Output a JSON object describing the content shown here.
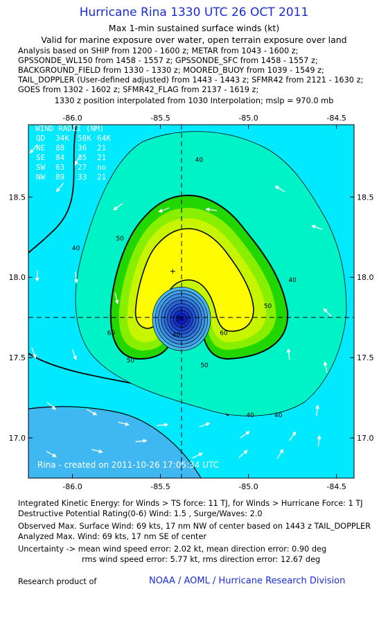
{
  "header": {
    "title": "Hurricane Rina 1330 UTC 26 OCT 2011",
    "subtitle": "Max 1-min sustained surface winds (kt)",
    "valid": "Valid for marine exposure over water, open terrain exposure over land",
    "analysis_lines": [
      "Analysis based on SHIP from 1200 - 1600 z; METAR from 1043 - 1600 z;",
      "GPSSONDE_WL150 from 1458 - 1557 z; GPSSONDE_SFC from 1458 - 1557 z;",
      "BACKGROUND_FIELD from 1330 - 1330 z; MOORED_BUOY from 1039 - 1549 z;",
      "TAIL_DOPPLER (User-defined adjusted) from 1443 - 1443 z; SFMR42 from 2121 - 1630 z;",
      "GOES from 1302 - 1602 z; SFMR42_FLAG from 2137 - 1619 z;"
    ],
    "position_note": "1330 z position interpolated from 1030 Interpolation; mslp = 970.0 mb"
  },
  "wind_radii": {
    "title": "WIND RADII (NM)",
    "header": [
      "QD",
      "34K",
      "50K",
      "64K"
    ],
    "rows": [
      [
        "NE",
        "88",
        "36",
        "21"
      ],
      [
        "SE",
        "84",
        "35",
        "21"
      ],
      [
        "SW",
        "63",
        "27",
        "no"
      ],
      [
        "NW",
        "89",
        "33",
        "21"
      ]
    ]
  },
  "watermark": "Rina - created on 2011-10-26 17:05:34 UTC",
  "footer": {
    "ike": "Integrated Kinetic Energy:  for Winds > TS force: 11 TJ,  for Winds > Hurricane Force: 1 TJ",
    "dpr": "Destructive Potential Rating(0-6)   Wind: 1.5 , Surge/Waves: 2.0",
    "observed": "Observed Max. Surface Wind: 69 kts, 17 nm NW of center based on 1443 z TAIL_DOPPLER",
    "analyzed": "Analyzed Max. Wind: 69 kts, 17 nm SE of center",
    "uncertainty_1": "Uncertainty -> mean wind speed error: 2.02 kt,   mean direction error: 0.90 deg",
    "uncertainty_2": "rms wind speed error: 5.77 kt,   rms direction error: 12.67 deg",
    "research": "Research product of",
    "org": "NOAA / AOML / Hurricane Research Division"
  },
  "colors": {
    "title": "#1a2bd6",
    "bg_low": "#3fb8f2",
    "lvl30": "#00e9ff",
    "lvl40": "#00f2c7",
    "lvl50": "#22d600",
    "lvl55": "#88ef00",
    "lvl60": "#c7f500",
    "lvl65": "#fffb00",
    "eye_light": "#49b6ef",
    "eye_dark": "#0b1cc6"
  },
  "chart_data": {
    "type": "contour",
    "xlim": [
      -86.25,
      -84.4
    ],
    "ylim": [
      16.75,
      18.95
    ],
    "x_ticks": [
      -86.0,
      -85.5,
      -85.0,
      -84.5
    ],
    "x_tick_labels": [
      "-86.0",
      "-85.5",
      "-85.0",
      "-84.5"
    ],
    "y_ticks": [
      17.0,
      17.5,
      18.0,
      18.5
    ],
    "y_tick_labels": [
      "17.0",
      "17.5",
      "18.0",
      "18.5"
    ],
    "center": {
      "lon": -85.38,
      "lat": 17.75
    },
    "max_wind_marker": {
      "lon": -85.43,
      "lat": 18.04
    },
    "contour_levels": [
      20,
      30,
      40,
      50,
      55,
      60,
      65
    ],
    "contour_labels": [
      {
        "text": "40",
        "lon": -85.28,
        "lat": 18.72
      },
      {
        "text": "40",
        "lon": -85.98,
        "lat": 18.17
      },
      {
        "text": "40",
        "lon": -84.75,
        "lat": 17.97
      },
      {
        "text": "40",
        "lon": -85.41,
        "lat": 17.63
      },
      {
        "text": "40",
        "lon": -84.99,
        "lat": 17.13
      },
      {
        "text": "40",
        "lon": -84.83,
        "lat": 17.13
      },
      {
        "text": "50",
        "lon": -85.73,
        "lat": 18.23
      },
      {
        "text": "50",
        "lon": -84.89,
        "lat": 17.81
      },
      {
        "text": "50",
        "lon": -85.67,
        "lat": 17.47
      },
      {
        "text": "50",
        "lon": -85.25,
        "lat": 17.44
      },
      {
        "text": "60",
        "lon": -85.78,
        "lat": 17.64
      },
      {
        "text": "60",
        "lon": -85.14,
        "lat": 17.64
      },
      {
        "text": "50",
        "lon": -85.39,
        "lat": 17.73
      }
    ],
    "wind_vectors": [
      {
        "lon": -86.22,
        "lat": 18.8,
        "u": -0.5,
        "v": -0.6
      },
      {
        "lon": -85.97,
        "lat": 18.73,
        "u": -0.4,
        "v": -0.7
      },
      {
        "lon": -86.07,
        "lat": 18.56,
        "u": -0.5,
        "v": -0.6
      },
      {
        "lon": -85.74,
        "lat": 18.44,
        "u": -0.7,
        "v": -0.5
      },
      {
        "lon": -85.48,
        "lat": 18.42,
        "u": -0.8,
        "v": -0.3
      },
      {
        "lon": -85.21,
        "lat": 18.42,
        "u": -0.8,
        "v": 0.1
      },
      {
        "lon": -84.82,
        "lat": 18.55,
        "u": -0.7,
        "v": 0.4
      },
      {
        "lon": -84.61,
        "lat": 18.31,
        "u": -0.8,
        "v": 0.3
      },
      {
        "lon": -84.55,
        "lat": 17.78,
        "u": -0.6,
        "v": 0.6
      },
      {
        "lon": -86.2,
        "lat": 18.01,
        "u": 0.0,
        "v": -0.9
      },
      {
        "lon": -85.98,
        "lat": 18.0,
        "u": 0.1,
        "v": -0.9
      },
      {
        "lon": -85.75,
        "lat": 17.87,
        "u": 0.2,
        "v": -0.9
      },
      {
        "lon": -86.22,
        "lat": 17.53,
        "u": 0.3,
        "v": -0.8
      },
      {
        "lon": -85.99,
        "lat": 17.52,
        "u": 0.3,
        "v": -0.8
      },
      {
        "lon": -84.77,
        "lat": 17.52,
        "u": -0.1,
        "v": 0.9
      },
      {
        "lon": -84.56,
        "lat": 17.44,
        "u": -0.2,
        "v": 0.9
      },
      {
        "lon": -86.12,
        "lat": 17.2,
        "u": 0.6,
        "v": -0.5
      },
      {
        "lon": -85.89,
        "lat": 17.16,
        "u": 0.7,
        "v": -0.4
      },
      {
        "lon": -85.71,
        "lat": 17.09,
        "u": 0.8,
        "v": -0.2
      },
      {
        "lon": -85.49,
        "lat": 17.08,
        "u": 0.9,
        "v": 0.1
      },
      {
        "lon": -85.25,
        "lat": 17.08,
        "u": 0.8,
        "v": 0.3
      },
      {
        "lon": -85.02,
        "lat": 17.02,
        "u": 0.7,
        "v": 0.5
      },
      {
        "lon": -84.75,
        "lat": 17.01,
        "u": 0.5,
        "v": 0.7
      },
      {
        "lon": -84.61,
        "lat": 17.17,
        "u": 0.1,
        "v": 0.9
      },
      {
        "lon": -86.12,
        "lat": 16.9,
        "u": 0.7,
        "v": -0.4
      },
      {
        "lon": -85.86,
        "lat": 16.92,
        "u": 0.8,
        "v": -0.2
      },
      {
        "lon": -85.61,
        "lat": 16.98,
        "u": 0.9,
        "v": 0.1
      },
      {
        "lon": -85.29,
        "lat": 16.89,
        "u": 0.8,
        "v": 0.4
      },
      {
        "lon": -85.03,
        "lat": 16.9,
        "u": 0.7,
        "v": 0.6
      },
      {
        "lon": -84.82,
        "lat": 16.9,
        "u": 0.5,
        "v": 0.8
      },
      {
        "lon": -84.6,
        "lat": 16.98,
        "u": 0.1,
        "v": 0.9
      }
    ]
  }
}
